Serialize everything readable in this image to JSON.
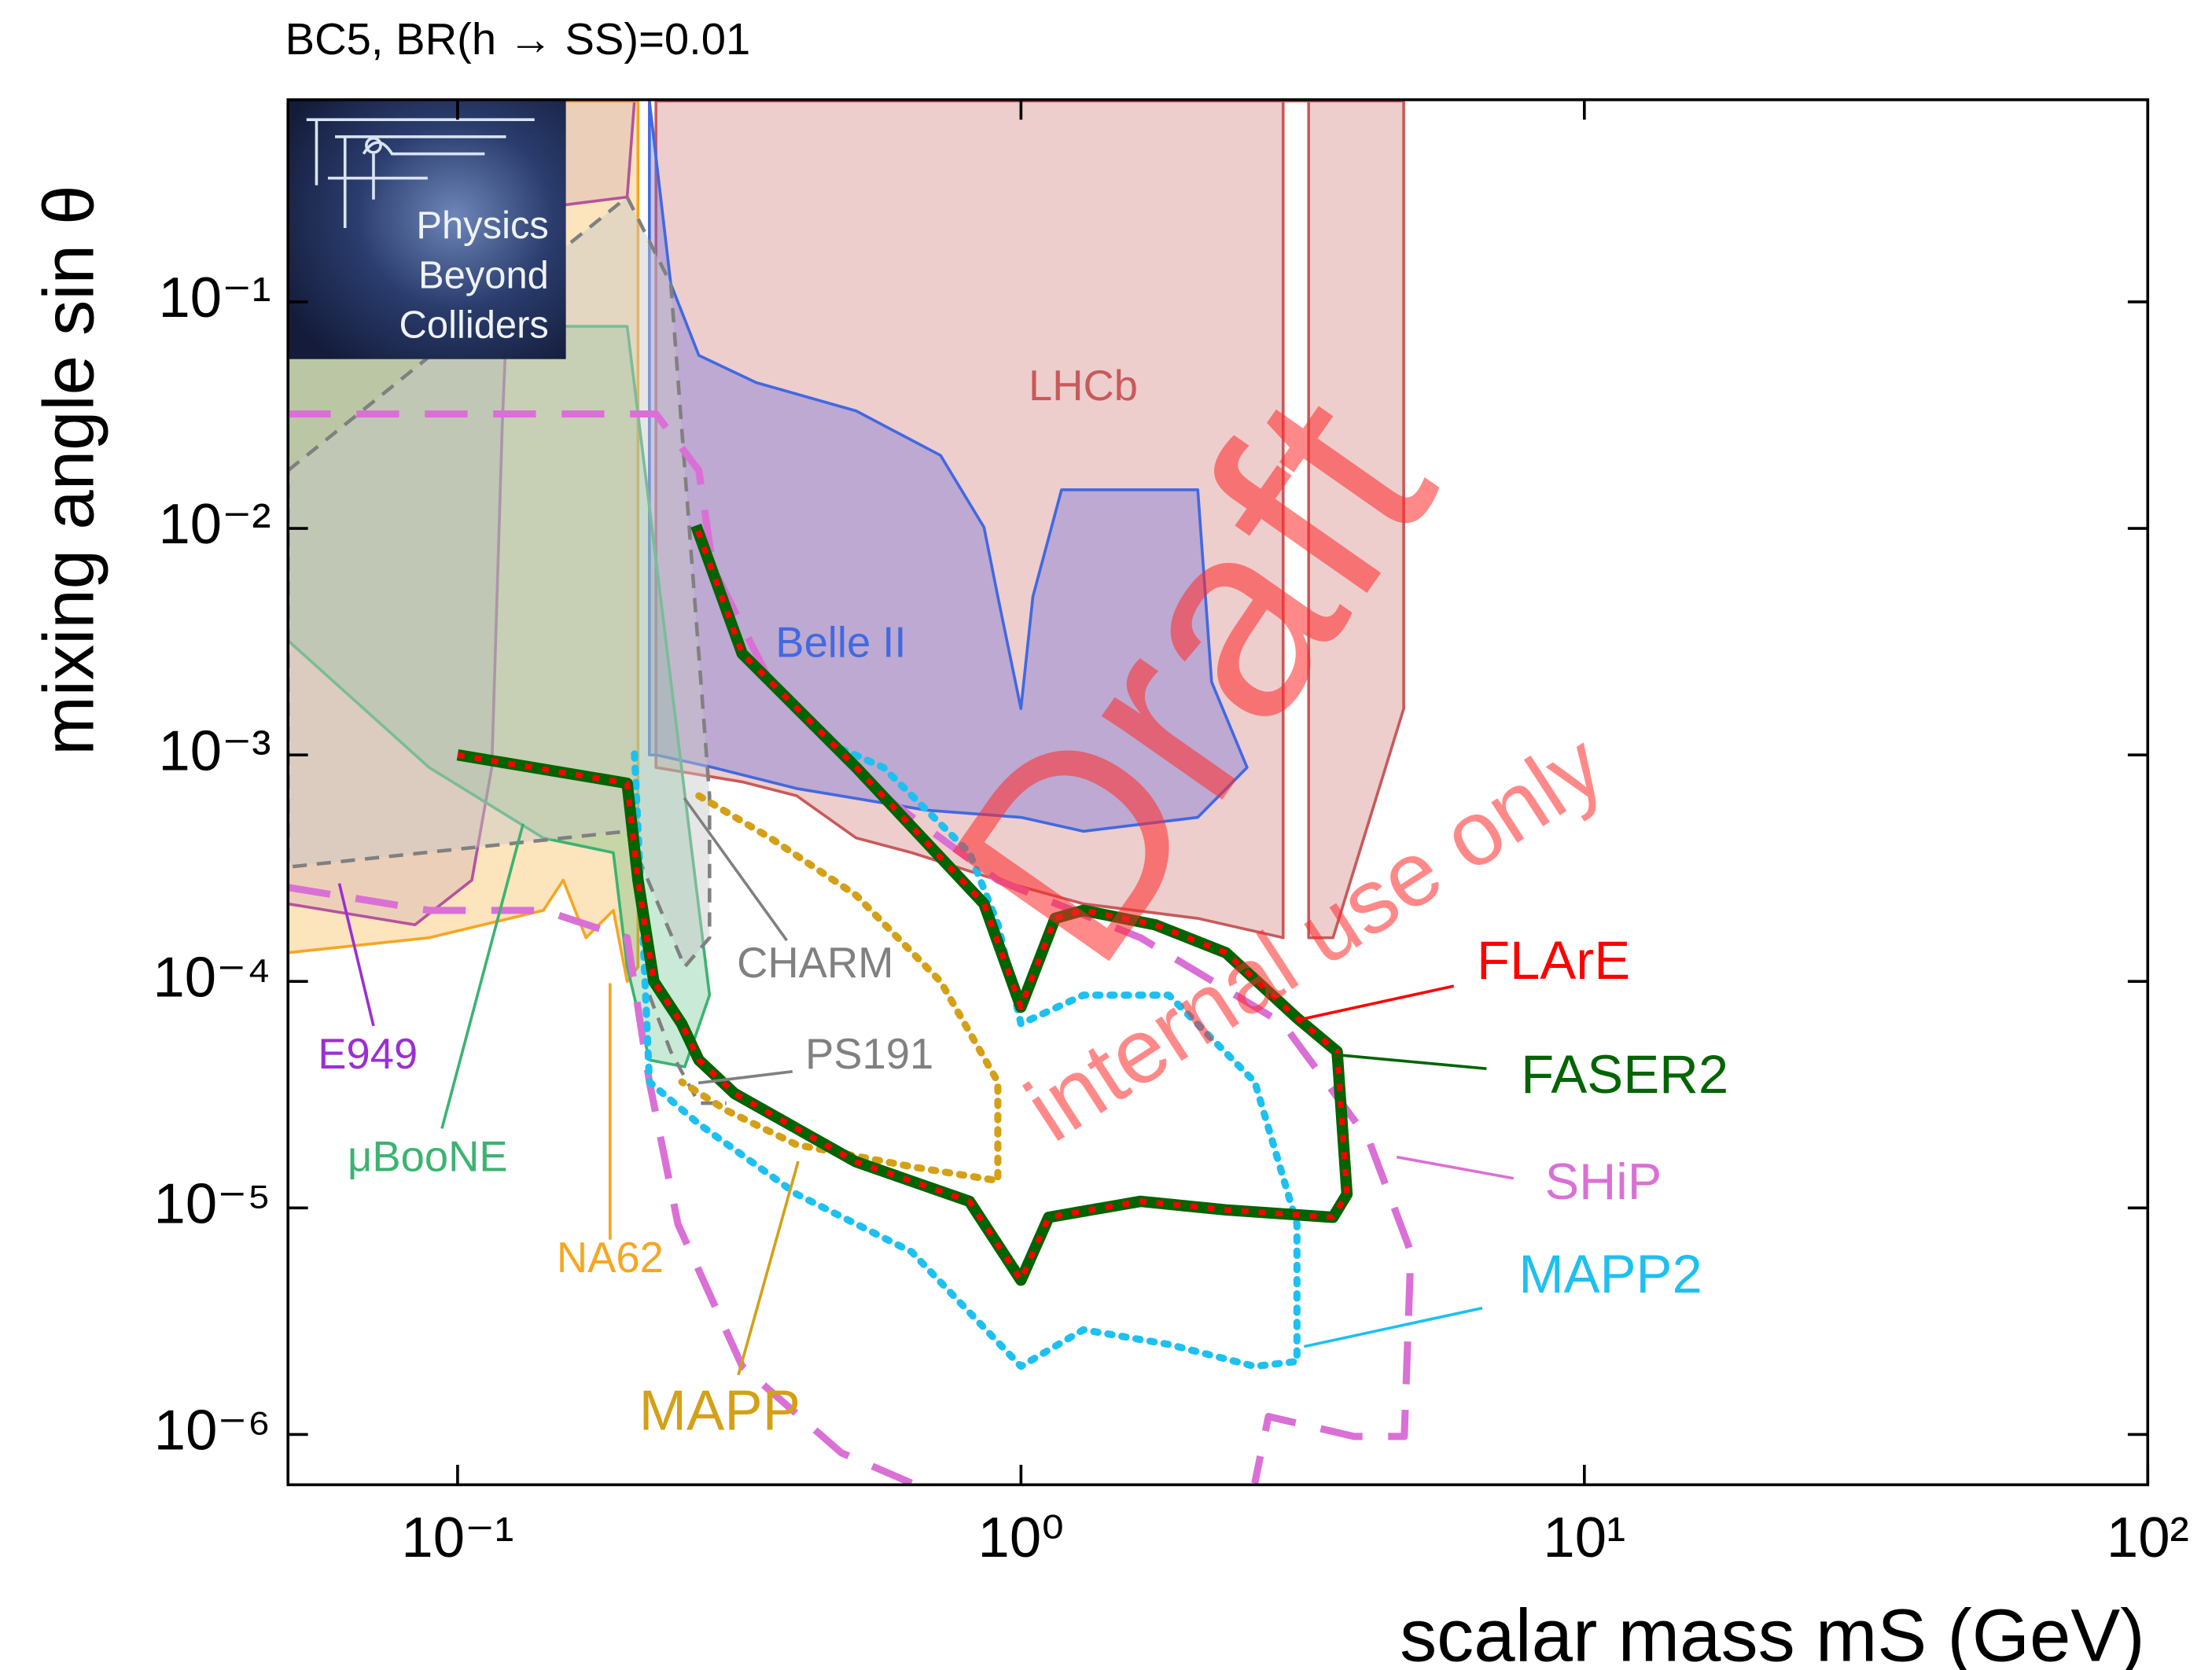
{
  "chart_data": {
    "type": "line",
    "title": "BC5, BR(h → SS)=0.01",
    "xlabel": "scalar mass mS (GeV)",
    "ylabel": "mixing angle sin θ",
    "log_x": true,
    "log_y": true,
    "xlim": [
      0.05,
      100
    ],
    "ylim": [
      6e-07,
      0.78
    ],
    "xticks": [
      {
        "value": 0.1,
        "label": "10⁻¹"
      },
      {
        "value": 1,
        "label": "10⁰"
      },
      {
        "value": 10,
        "label": "10¹"
      },
      {
        "value": 100,
        "label": "10²"
      }
    ],
    "yticks": [
      {
        "value": 1e-06,
        "label": "10⁻⁶"
      },
      {
        "value": 1e-05,
        "label": "10⁻⁵"
      },
      {
        "value": 0.0001,
        "label": "10⁻⁴"
      },
      {
        "value": 0.001,
        "label": "10⁻³"
      },
      {
        "value": 0.01,
        "label": "10⁻²"
      },
      {
        "value": 0.1,
        "label": "10⁻¹"
      }
    ],
    "logo": [
      "Physics",
      "Beyond",
      "Colliders"
    ],
    "watermark": [
      "Draft",
      "internal use only"
    ],
    "series": [
      {
        "name": "LHCb",
        "kind": "area",
        "style": "solid",
        "color": "#c85a5a",
        "fill": "rgba(200,90,90,0.3)",
        "x": [
          0.225,
          0.225,
          0.32,
          0.4,
          0.51,
          0.64,
          0.91,
          1.29,
          2.06,
          2.92,
          2.92,
          3.24,
          3.24,
          3.58,
          4.78,
          4.78
        ],
        "y": [
          0.77,
          0.00088,
          0.00076,
          0.00066,
          0.00043,
          0.00037,
          0.00028,
          0.00022,
          0.00019,
          0.000156,
          0.77,
          0.77,
          0.000156,
          0.000156,
          0.0016,
          0.77
        ]
      },
      {
        "name": "Belle II",
        "kind": "area",
        "style": "solid",
        "color": "#4169e1",
        "fill": "rgba(110,110,215,0.38)",
        "x": [
          0.219,
          0.239,
          0.268,
          0.339,
          0.51,
          0.72,
          0.86,
          0.91,
          1.0,
          1.05,
          1.18,
          2.06,
          2.18,
          2.52,
          2.06,
          1.29,
          1.0,
          0.68,
          0.4,
          0.284,
          0.225,
          0.219
        ],
        "y": [
          0.77,
          0.12,
          0.058,
          0.044,
          0.033,
          0.021,
          0.0101,
          0.005,
          0.0016,
          0.005,
          0.0148,
          0.0148,
          0.0021,
          0.00088,
          0.00053,
          0.00046,
          0.00053,
          0.00057,
          0.00071,
          0.00088,
          0.001,
          0.001
        ]
      },
      {
        "name": "E949",
        "kind": "area",
        "style": "solid",
        "color": "#9b30d0",
        "fill": "rgba(200,180,240,0.4)",
        "x": [
          0.05,
          0.084,
          0.106,
          0.115,
          0.12,
          0.1245,
          0.159,
          0.2,
          0.206,
          0.05
        ],
        "y": [
          0.00022,
          0.000178,
          0.00028,
          0.00088,
          0.028,
          0.25,
          0.27,
          0.29,
          0.77,
          0.77
        ]
      },
      {
        "name": "NA62",
        "kind": "area",
        "style": "solid",
        "color": "#f5a623",
        "fill": "rgba(245,166,35,0.3)",
        "x": [
          0.05,
          0.089,
          0.142,
          0.154,
          0.169,
          0.189,
          0.2,
          0.209,
          0.209,
          0.05
        ],
        "y": [
          0.000134,
          0.000156,
          0.000206,
          0.00028,
          0.000156,
          0.000206,
          0.0001,
          0.000116,
          0.77,
          0.77
        ]
      },
      {
        "name": "μBooNE",
        "kind": "area",
        "style": "solid",
        "color": "#3cb371",
        "fill": "rgba(60,179,113,0.28)",
        "x": [
          0.05,
          0.089,
          0.142,
          0.189,
          0.2,
          0.219,
          0.253,
          0.28,
          0.2,
          0.05
        ],
        "y": [
          0.0032,
          0.00088,
          0.00043,
          0.00037,
          0.000116,
          4.5e-05,
          4.2e-05,
          8.7e-05,
          0.078,
          0.078
        ]
      },
      {
        "name": "CHARM",
        "kind": "area",
        "style": "dashed",
        "color": "#808080",
        "fill": "rgba(200,200,200,0.45)",
        "x": [
          0.05,
          0.2,
          0.239,
          0.28,
          0.28,
          0.253,
          0.2,
          0.05
        ],
        "y": [
          0.018,
          0.29,
          0.12,
          0.00066,
          0.000156,
          0.000116,
          0.00046,
          0.00032
        ]
      },
      {
        "name": "PS191",
        "kind": "line",
        "style": "dashed",
        "color": "#808080",
        "x": [
          0.219,
          0.239,
          0.268,
          0.3
        ],
        "y": [
          8.7e-05,
          4.9e-05,
          2.9e-05,
          2.9e-05
        ]
      },
      {
        "name": "SHiP",
        "kind": "line",
        "style": "longdash",
        "color": "#da70d6",
        "x": [
          0.05,
          0.225,
          0.268,
          0.284,
          0.359,
          0.57,
          0.91,
          1.63,
          2.92,
          4.14,
          4.92,
          4.79,
          3.9,
          2.75,
          2.6,
          null,
          0.05,
          0.089,
          0.142,
          0.2,
          0.219,
          0.246,
          0.32,
          0.48,
          0.64
        ],
        "y": [
          0.032,
          0.032,
          0.018,
          0.0067,
          0.0021,
          0.00066,
          0.00028,
          0.000156,
          6.5e-05,
          2e-05,
          6.4e-06,
          9.8e-07,
          9.8e-07,
          1.2e-06,
          6.1e-07,
          null,
          0.00026,
          0.000206,
          0.000206,
          0.000156,
          3.6e-05,
          8.5e-06,
          2e-06,
          8.3e-07,
          6.1e-07
        ]
      },
      {
        "name": "MAPP",
        "kind": "line",
        "style": "dotted",
        "color": "#d4a017",
        "x": [
          0.268,
          0.359,
          0.51,
          0.72,
          0.91,
          0.91,
          0.64,
          0.4,
          0.3,
          0.25
        ],
        "y": [
          0.00066,
          0.00043,
          0.00024,
          0.0001,
          3.6e-05,
          1.32e-05,
          1.52e-05,
          1.9e-05,
          2.7e-05,
          3.6e-05
        ]
      },
      {
        "name": "MAPP2",
        "kind": "line",
        "style": "dotted",
        "color": "#1ec0f0",
        "x": [
          0.206,
          0.213,
          0.219,
          0.268,
          0.4,
          0.64,
          1.0,
          1.29,
          1.83,
          2.6,
          3.09,
          3.09,
          2.6,
          1.83,
          1.29,
          1.0,
          0.911,
          0.81,
          0.57,
          0.44
        ],
        "y": [
          0.00101,
          0.000178,
          3.6e-05,
          2.35e-05,
          1.15e-05,
          6.4e-06,
          2e-06,
          2.9e-06,
          2.5e-06,
          2e-06,
          2.1e-06,
          8.5e-06,
          3.6e-05,
          8.7e-05,
          8.7e-05,
          6.5e-05,
          0.000178,
          0.00037,
          0.00088,
          0.00117
        ]
      },
      {
        "name": "FASER2",
        "kind": "line",
        "style": "thick",
        "color": "#006400",
        "x": [
          0.1,
          0.2,
          0.209,
          0.223,
          0.25,
          0.268,
          0.31,
          0.509,
          0.81,
          1.0,
          1.12,
          1.63,
          2.31,
          3.58,
          3.79,
          3.64,
          3.09,
          2.31,
          1.73,
          1.29,
          1.15,
          1.0,
          0.86,
          0.51,
          0.32,
          0.265
        ],
        "y": [
          0.001,
          0.00075,
          0.00028,
          0.0001,
          6.5e-05,
          4.5e-05,
          3.2e-05,
          1.6e-05,
          1.07e-05,
          4.8e-06,
          9.1e-06,
          1.07e-05,
          9.8e-06,
          9.1e-06,
          1.15e-05,
          4.9e-05,
          6.9e-05,
          0.000134,
          0.000178,
          0.000206,
          0.00019,
          7.7e-05,
          0.00022,
          0.00088,
          0.0028,
          0.0103
        ]
      },
      {
        "name": "FLArE",
        "kind": "line",
        "style": "reddot",
        "color": "#ff0000",
        "x": [
          0.1,
          0.2,
          0.209,
          0.223,
          0.25,
          0.268,
          0.31,
          0.509,
          0.81,
          1.0,
          1.12,
          1.63,
          2.31,
          3.58,
          3.79,
          3.64,
          3.09,
          2.31,
          1.73,
          1.29,
          1.15,
          1.0,
          0.86,
          0.51,
          0.32,
          0.265
        ],
        "y": [
          0.001,
          0.00075,
          0.00028,
          0.0001,
          6.5e-05,
          4.5e-05,
          3.2e-05,
          1.6e-05,
          1.07e-05,
          4.8e-06,
          9.1e-06,
          1.07e-05,
          9.8e-06,
          9.1e-06,
          1.15e-05,
          4.9e-05,
          6.9e-05,
          0.000134,
          0.000178,
          0.000206,
          0.00019,
          7.7e-05,
          0.00022,
          0.00088,
          0.0028,
          0.0103
        ]
      }
    ]
  }
}
